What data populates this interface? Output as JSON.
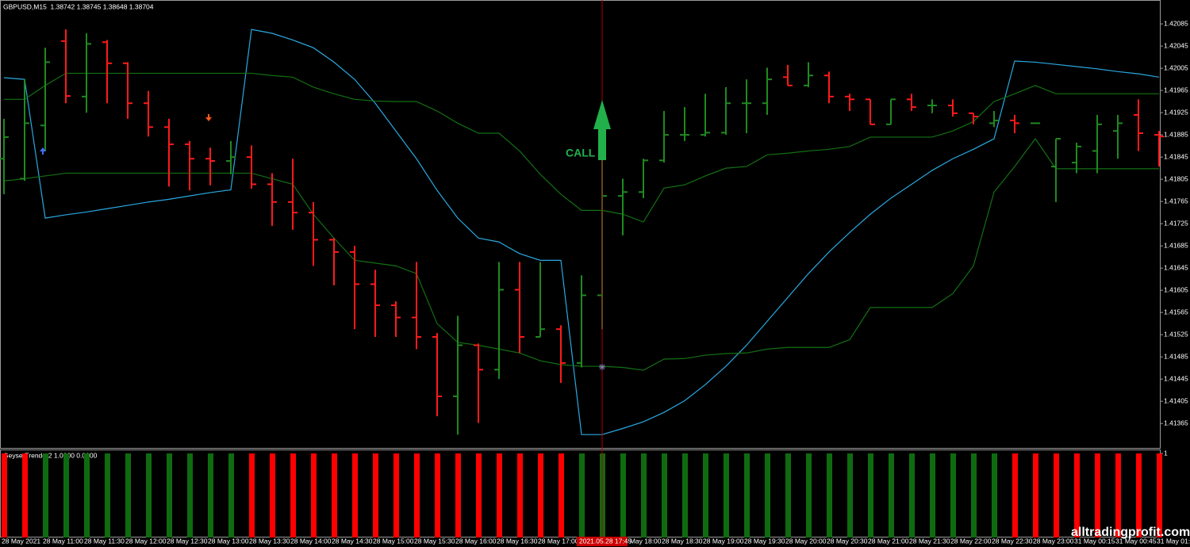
{
  "chart_data": [
    {
      "type": "ohlc",
      "title": "GBPUSD,M15  1.38742 1.38745 1.38648 1.38704",
      "categories": [
        "28 May 2021",
        null,
        "28 May 11:00",
        null,
        "28 May 11:30",
        null,
        "28 May 12:00",
        null,
        "28 May 12:30",
        null,
        "28 May 13:00",
        null,
        "28 May 13:30",
        null,
        "28 May 14:00",
        null,
        "28 May 14:30",
        null,
        "28 May 15:00",
        null,
        "28 May 15:30",
        null,
        "28 May 16:00",
        null,
        "28 May 16:30",
        null,
        "28 May 17:00",
        null,
        null,
        null,
        "28 May 18:00",
        null,
        "28 May 18:30",
        null,
        "28 May 19:00",
        null,
        "28 May 19:30",
        null,
        "28 May 20:00",
        null,
        "28 May 20:30",
        null,
        "28 May 21:00",
        null,
        "28 May 21:30",
        null,
        "28 May 22:00",
        null,
        "28 May 22:30",
        null,
        "28 May 23:00",
        null,
        "31 May 00:15",
        null,
        "31 May 00:45",
        null,
        "31 May 01:"
      ],
      "open": [
        1.41842,
        1.41806,
        1.41902,
        1.42054,
        1.41954,
        1.42052,
        1.42014,
        1.41942,
        1.41899,
        1.41868,
        1.41842,
        1.41838,
        1.41845,
        1.41796,
        1.41764,
        1.41745,
        1.41696,
        1.41674,
        1.41616,
        1.41578,
        1.41556,
        1.41521,
        1.41414,
        1.41506,
        1.41462,
        1.41606,
        1.41521,
        1.41535,
        1.41474,
        1.41596,
        1.41775,
        1.41782,
        1.41839,
        1.41885,
        1.41885,
        1.41889,
        1.41942,
        1.41942,
        1.41989,
        1.41974,
        1.41992,
        1.41954,
        1.41949,
        1.41904,
        1.41949,
        1.41938,
        1.41938,
        1.41924,
        1.41906,
        1.41911,
        1.41906,
        1.41828,
        1.41835,
        1.41856,
        1.41892,
        1.41921,
        1.41885
      ],
      "high": [
        1.41914,
        1.41985,
        1.42042,
        1.42075,
        1.42068,
        1.42056,
        1.42016,
        1.41964,
        1.41914,
        1.41874,
        1.41862,
        1.41874,
        1.41866,
        1.41816,
        1.41842,
        1.41764,
        1.41699,
        1.41685,
        1.41642,
        1.41585,
        1.41656,
        1.41528,
        1.41559,
        1.41509,
        1.41656,
        1.41656,
        1.41656,
        1.41542,
        1.41632,
        1.41842,
        1.41806,
        1.41842,
        1.41928,
        1.41935,
        1.41959,
        1.41971,
        1.41985,
        1.42006,
        1.42011,
        1.42016,
        1.41999,
        1.41959,
        1.41949,
        1.41949,
        1.41959,
        1.41949,
        1.41949,
        1.41924,
        1.41928,
        1.41921,
        1.41906,
        1.41878,
        1.41871,
        1.41921,
        1.41921,
        1.41949,
        1.41892
      ],
      "low": [
        1.41778,
        1.41802,
        1.41856,
        1.41942,
        1.41925,
        1.41942,
        1.41914,
        1.41882,
        1.41792,
        1.41785,
        1.41794,
        1.41814,
        1.41788,
        1.41721,
        1.41714,
        1.41649,
        1.41614,
        1.41535,
        1.41521,
        1.41521,
        1.41499,
        1.41378,
        1.41345,
        1.41366,
        1.41445,
        1.41492,
        1.41521,
        1.41438,
        1.41466,
        1.41535,
        1.41704,
        1.41771,
        1.41835,
        1.41874,
        1.41882,
        1.41885,
        1.41888,
        1.41921,
        1.41974,
        1.41971,
        1.41942,
        1.41928,
        1.41904,
        1.41904,
        1.41928,
        1.41924,
        1.41918,
        1.41904,
        1.41899,
        1.41888,
        1.41906,
        1.41764,
        1.41816,
        1.41816,
        1.41842,
        1.41856,
        1.41828
      ],
      "close": [
        1.41881,
        1.41906,
        1.42016,
        1.41955,
        1.42049,
        1.42014,
        1.41942,
        1.41899,
        1.41868,
        1.41842,
        1.41838,
        1.41845,
        1.41796,
        1.41764,
        1.41745,
        1.41696,
        1.41674,
        1.41616,
        1.41578,
        1.41556,
        1.41521,
        1.41414,
        1.41506,
        1.41462,
        1.41606,
        1.41521,
        1.41535,
        1.41474,
        1.41596,
        1.41775,
        1.41782,
        1.41839,
        1.41885,
        1.41885,
        1.41889,
        1.41942,
        1.41942,
        1.41985,
        1.41974,
        1.41992,
        1.41954,
        1.41949,
        1.41904,
        1.41949,
        1.41935,
        1.41938,
        1.41924,
        1.41918,
        1.41911,
        1.41906,
        1.41906,
        1.41878,
        1.41864,
        1.41904,
        1.41906,
        1.41888,
        1.41882
      ],
      "up_color": "#1f8a1f",
      "down_color": "#ff1a1a",
      "series": [
        {
          "color": "#2aa8e0",
          "values": [
            1.41988,
            1.41985,
            1.41735,
            1.41741,
            1.41746,
            1.41752,
            1.41758,
            1.41764,
            1.41769,
            1.41775,
            1.41781,
            1.41786,
            1.42075,
            1.42068,
            1.42056,
            1.42042,
            1.42016,
            1.41985,
            1.41942,
            1.41892,
            1.41842,
            1.41785,
            1.41735,
            1.41699,
            1.41692,
            1.41671,
            1.41659,
            1.41659,
            1.41345,
            1.41345,
            1.41356,
            1.41368,
            1.41385,
            1.41406,
            1.41435,
            1.41468,
            1.41506,
            1.41549,
            1.41592,
            1.41635,
            1.41674,
            1.41709,
            1.41742,
            1.41771,
            1.41796,
            1.41821,
            1.41842,
            1.41859,
            1.41878,
            1.42018,
            1.42016,
            1.42012,
            1.42008,
            1.42004,
            1.41999,
            1.41995,
            1.41989
          ]
        },
        {
          "color": "#137013",
          "values": [
            1.41949,
            1.41949,
            1.41974,
            1.41996,
            1.41996,
            1.41996,
            1.41996,
            1.41996,
            1.41996,
            1.41996,
            1.41996,
            1.41996,
            1.41996,
            1.41992,
            1.41989,
            1.41971,
            1.41959,
            1.41949,
            1.41946,
            1.41945,
            1.41945,
            1.41928,
            1.41906,
            1.41888,
            1.41888,
            1.41856,
            1.41814,
            1.41778,
            1.41749,
            1.41749,
            1.41742,
            1.41728,
            1.41789,
            1.41795,
            1.41811,
            1.41825,
            1.41828,
            1.41849,
            1.41852,
            1.41856,
            1.41859,
            1.41864,
            1.41881,
            1.41881,
            1.41881,
            1.41881,
            1.41892,
            1.41909,
            1.41945,
            1.41959,
            1.41974,
            1.41959,
            1.41959,
            1.41959,
            1.41959,
            1.41959,
            1.41959
          ]
        },
        {
          "color": "#137013",
          "values": [
            1.41802,
            1.41806,
            1.41811,
            1.41816,
            1.41816,
            1.41816,
            1.41816,
            1.41816,
            1.41816,
            1.41816,
            1.41816,
            1.41816,
            1.41816,
            1.41806,
            1.41796,
            1.41742,
            1.41699,
            1.41659,
            1.41654,
            1.41649,
            1.41635,
            1.41545,
            1.41511,
            1.41506,
            1.41499,
            1.41492,
            1.41478,
            1.41471,
            1.41468,
            1.41468,
            1.41466,
            1.41461,
            1.41481,
            1.41482,
            1.41488,
            1.41491,
            1.41492,
            1.41499,
            1.41502,
            1.41502,
            1.41502,
            1.41516,
            1.41574,
            1.41574,
            1.41574,
            1.41574,
            1.41599,
            1.41649,
            1.41782,
            1.41828,
            1.41878,
            1.41824,
            1.41824,
            1.41824,
            1.41824,
            1.41824,
            1.41824
          ]
        }
      ],
      "ylim": [
        1.41321,
        1.42128
      ],
      "yticks": [
        1.42085,
        1.42045,
        1.42005,
        1.41965,
        1.41925,
        1.41885,
        1.41845,
        1.41805,
        1.41765,
        1.41725,
        1.41685,
        1.41645,
        1.41605,
        1.41565,
        1.41525,
        1.41485,
        1.41445,
        1.41405,
        1.41365
      ],
      "annotation": "CALL",
      "crosshair_label": "2021.05.28 17:45"
    },
    {
      "type": "histogram",
      "title": "GeyserTrender2 1.0000 0.0000",
      "series": [
        {
          "color": "#0f6b0f",
          "values": [
            0,
            0,
            1,
            1,
            1,
            1,
            1,
            1,
            1,
            1,
            1,
            1,
            0,
            0,
            0,
            0,
            0,
            0,
            0,
            0,
            0,
            0,
            0,
            0,
            0,
            0,
            0,
            0,
            1,
            1,
            1,
            1,
            1,
            1,
            1,
            1,
            1,
            1,
            1,
            1,
            1,
            1,
            1,
            1,
            1,
            1,
            1,
            1,
            1,
            0,
            0,
            0,
            0,
            0,
            0,
            0,
            0
          ]
        },
        {
          "color": "#ff0000",
          "values": [
            1,
            1,
            0,
            0,
            0,
            0,
            0,
            0,
            0,
            0,
            0,
            0,
            1,
            1,
            1,
            1,
            1,
            1,
            1,
            1,
            1,
            1,
            1,
            1,
            1,
            1,
            1,
            1,
            0,
            0,
            0,
            0,
            0,
            0,
            0,
            0,
            0,
            0,
            0,
            0,
            0,
            0,
            0,
            0,
            0,
            0,
            0,
            0,
            0,
            1,
            1,
            1,
            1,
            1,
            1,
            1,
            1
          ]
        }
      ],
      "ylim": [
        0,
        1
      ],
      "yticks": [
        1
      ]
    }
  ],
  "watermark": "alltradingprofit.com"
}
